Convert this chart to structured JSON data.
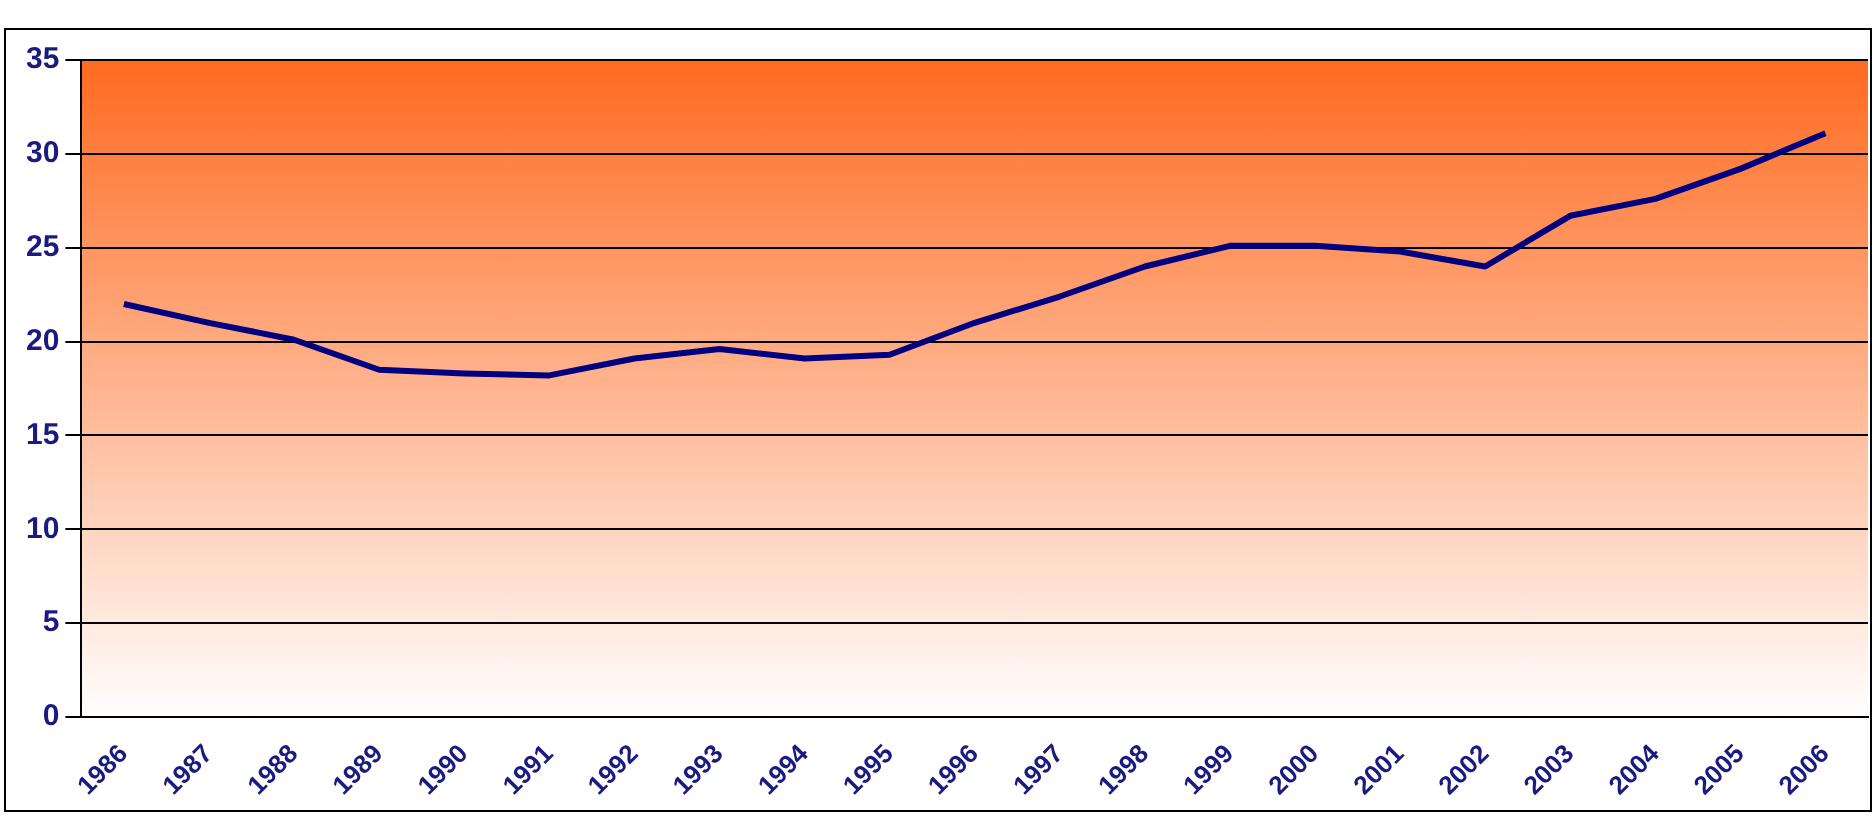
{
  "chart_data": {
    "type": "line",
    "categories": [
      "1986",
      "1987",
      "1988",
      "1989",
      "1990",
      "1991",
      "1992",
      "1993",
      "1994",
      "1995",
      "1996",
      "1997",
      "1998",
      "1999",
      "2000",
      "2001",
      "2002",
      "2003",
      "2004",
      "2005",
      "2006"
    ],
    "series": [
      {
        "color": "#000080",
        "values": [
          22,
          21,
          20.1,
          18.5,
          18.3,
          18.2,
          19.1,
          19.6,
          19.1,
          19.3,
          21,
          22.4,
          24,
          25.1,
          25.1,
          24.8,
          24,
          26.7,
          27.6,
          29.2,
          31.1
        ]
      }
    ],
    "ylim": [
      0,
      35
    ],
    "yticks": [
      0,
      5,
      10,
      15,
      20,
      25,
      30,
      35
    ],
    "grid": "y",
    "legend": false,
    "marker": "none",
    "line_style": "solid"
  }
}
